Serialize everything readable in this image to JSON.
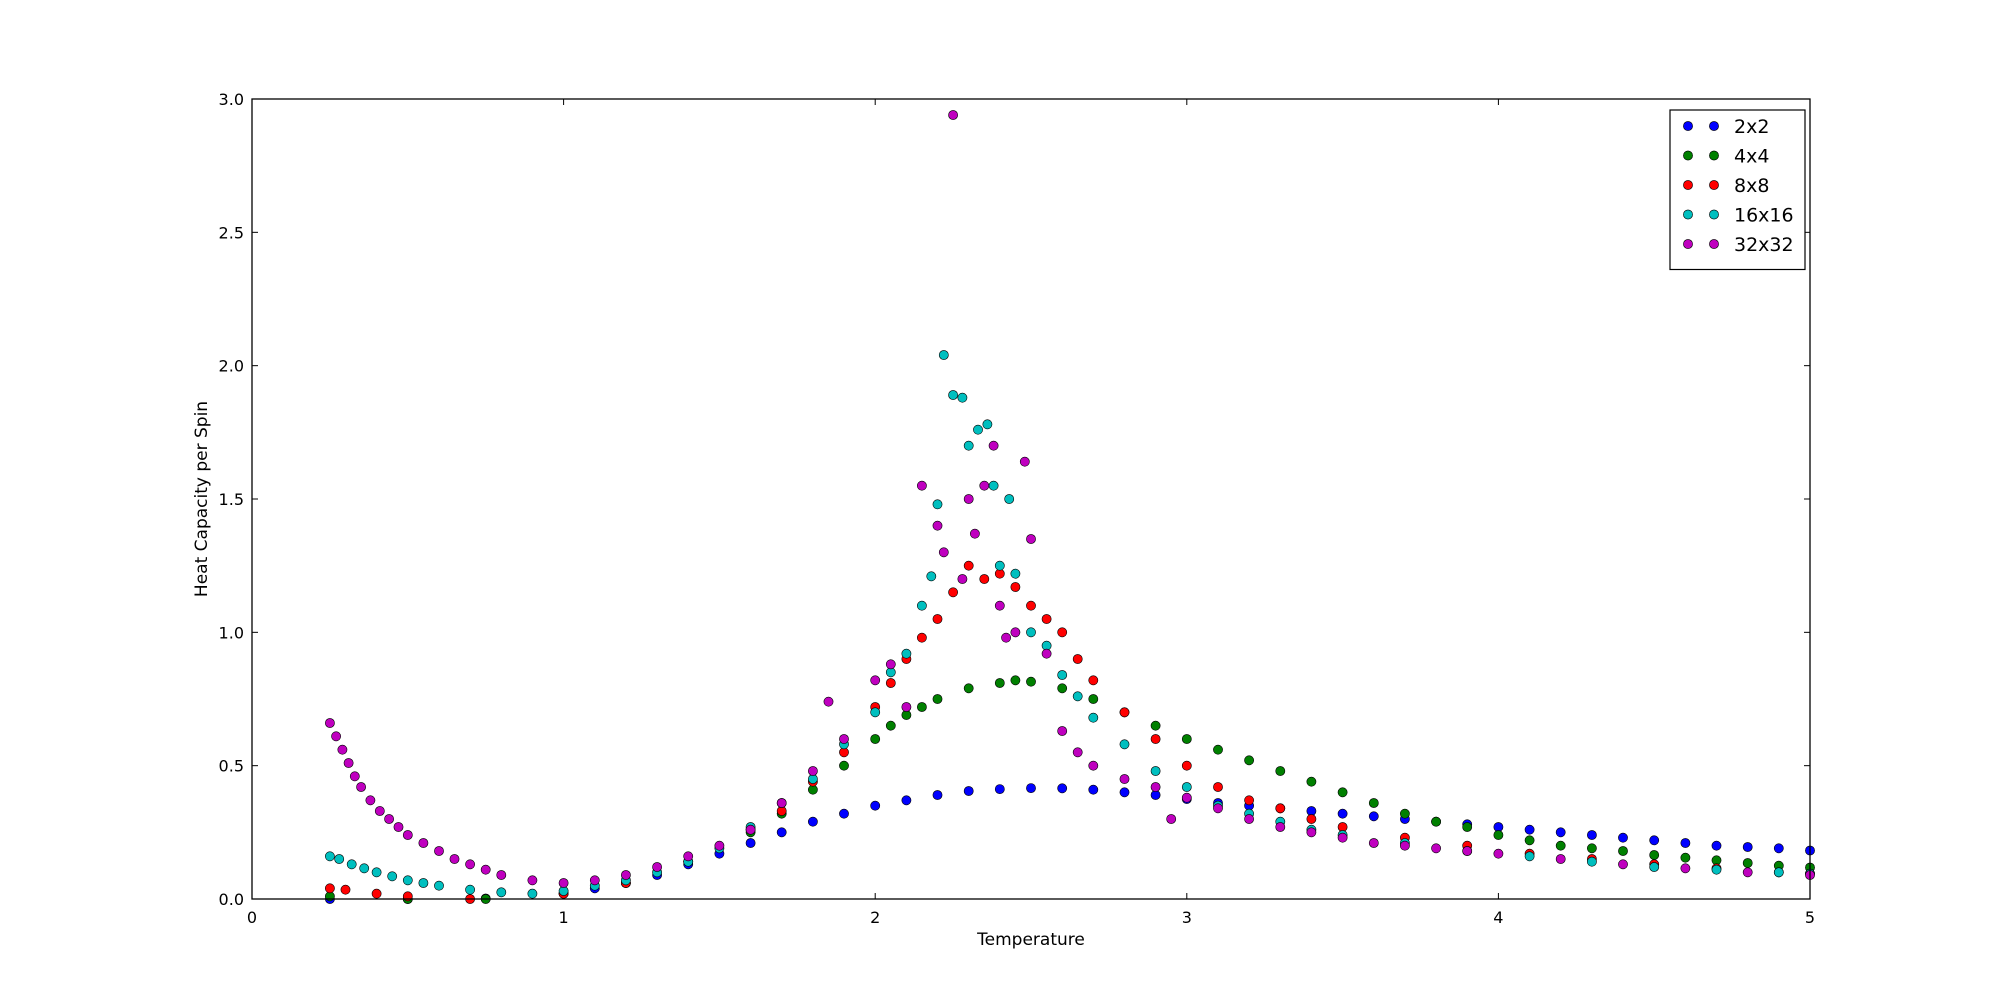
{
  "chart_data": {
    "type": "scatter",
    "title": "",
    "xlabel": "Temperature",
    "ylabel": "Heat Capacity per Spin",
    "xlim": [
      0,
      5
    ],
    "ylim": [
      0,
      3.0
    ],
    "x_ticks": [
      "0",
      "1",
      "2",
      "3",
      "4",
      "5"
    ],
    "y_ticks": [
      "0.0",
      "0.5",
      "1.0",
      "1.5",
      "2.0",
      "2.5",
      "3.0"
    ],
    "grid": false,
    "legend_position": "top-right",
    "series": [
      {
        "name": "2x2",
        "color": "#0000ff",
        "points": [
          [
            0.25,
            0.0
          ],
          [
            0.5,
            0.0
          ],
          [
            0.75,
            0.002
          ],
          [
            1.0,
            0.02
          ],
          [
            1.1,
            0.04
          ],
          [
            1.2,
            0.06
          ],
          [
            1.3,
            0.09
          ],
          [
            1.4,
            0.13
          ],
          [
            1.5,
            0.17
          ],
          [
            1.6,
            0.21
          ],
          [
            1.7,
            0.25
          ],
          [
            1.8,
            0.29
          ],
          [
            1.9,
            0.32
          ],
          [
            2.0,
            0.35
          ],
          [
            2.1,
            0.37
          ],
          [
            2.2,
            0.39
          ],
          [
            2.3,
            0.405
          ],
          [
            2.4,
            0.412
          ],
          [
            2.5,
            0.416
          ],
          [
            2.6,
            0.415
          ],
          [
            2.7,
            0.41
          ],
          [
            2.8,
            0.4
          ],
          [
            2.9,
            0.39
          ],
          [
            3.0,
            0.375
          ],
          [
            3.1,
            0.36
          ],
          [
            3.2,
            0.35
          ],
          [
            3.3,
            0.34
          ],
          [
            3.4,
            0.33
          ],
          [
            3.5,
            0.32
          ],
          [
            3.6,
            0.31
          ],
          [
            3.7,
            0.3
          ],
          [
            3.8,
            0.29
          ],
          [
            3.9,
            0.28
          ],
          [
            4.0,
            0.27
          ],
          [
            4.1,
            0.26
          ],
          [
            4.2,
            0.25
          ],
          [
            4.3,
            0.24
          ],
          [
            4.4,
            0.23
          ],
          [
            4.5,
            0.22
          ],
          [
            4.6,
            0.21
          ],
          [
            4.7,
            0.2
          ],
          [
            4.8,
            0.195
          ],
          [
            4.9,
            0.19
          ],
          [
            5.0,
            0.182
          ]
        ]
      },
      {
        "name": "4x4",
        "color": "#008000",
        "points": [
          [
            0.25,
            0.01
          ],
          [
            0.5,
            0.0
          ],
          [
            0.75,
            0.0
          ],
          [
            1.0,
            0.02
          ],
          [
            1.2,
            0.06
          ],
          [
            1.4,
            0.14
          ],
          [
            1.6,
            0.25
          ],
          [
            1.7,
            0.32
          ],
          [
            1.8,
            0.41
          ],
          [
            1.9,
            0.5
          ],
          [
            2.0,
            0.6
          ],
          [
            2.05,
            0.65
          ],
          [
            2.1,
            0.69
          ],
          [
            2.15,
            0.72
          ],
          [
            2.2,
            0.75
          ],
          [
            2.3,
            0.79
          ],
          [
            2.4,
            0.81
          ],
          [
            2.45,
            0.82
          ],
          [
            2.5,
            0.815
          ],
          [
            2.6,
            0.79
          ],
          [
            2.7,
            0.75
          ],
          [
            2.8,
            0.7
          ],
          [
            2.9,
            0.65
          ],
          [
            3.0,
            0.6
          ],
          [
            3.1,
            0.56
          ],
          [
            3.2,
            0.52
          ],
          [
            3.3,
            0.48
          ],
          [
            3.4,
            0.44
          ],
          [
            3.5,
            0.4
          ],
          [
            3.6,
            0.36
          ],
          [
            3.7,
            0.32
          ],
          [
            3.8,
            0.29
          ],
          [
            3.9,
            0.27
          ],
          [
            4.0,
            0.24
          ],
          [
            4.1,
            0.22
          ],
          [
            4.2,
            0.2
          ],
          [
            4.3,
            0.19
          ],
          [
            4.4,
            0.18
          ],
          [
            4.5,
            0.165
          ],
          [
            4.6,
            0.155
          ],
          [
            4.7,
            0.145
          ],
          [
            4.8,
            0.135
          ],
          [
            4.9,
            0.125
          ],
          [
            5.0,
            0.118
          ]
        ]
      },
      {
        "name": "8x8",
        "color": "#ff0000",
        "points": [
          [
            0.25,
            0.04
          ],
          [
            0.3,
            0.035
          ],
          [
            0.4,
            0.02
          ],
          [
            0.5,
            0.01
          ],
          [
            0.7,
            0.0
          ],
          [
            1.0,
            0.02
          ],
          [
            1.2,
            0.06
          ],
          [
            1.4,
            0.14
          ],
          [
            1.6,
            0.26
          ],
          [
            1.7,
            0.33
          ],
          [
            1.8,
            0.44
          ],
          [
            1.9,
            0.55
          ],
          [
            2.0,
            0.72
          ],
          [
            2.05,
            0.81
          ],
          [
            2.1,
            0.9
          ],
          [
            2.15,
            0.98
          ],
          [
            2.2,
            1.05
          ],
          [
            2.25,
            1.15
          ],
          [
            2.3,
            1.25
          ],
          [
            2.35,
            1.2
          ],
          [
            2.4,
            1.22
          ],
          [
            2.45,
            1.17
          ],
          [
            2.5,
            1.1
          ],
          [
            2.55,
            1.05
          ],
          [
            2.6,
            1.0
          ],
          [
            2.65,
            0.9
          ],
          [
            2.7,
            0.82
          ],
          [
            2.8,
            0.7
          ],
          [
            2.9,
            0.6
          ],
          [
            3.0,
            0.5
          ],
          [
            3.1,
            0.42
          ],
          [
            3.2,
            0.37
          ],
          [
            3.3,
            0.34
          ],
          [
            3.4,
            0.3
          ],
          [
            3.5,
            0.27
          ],
          [
            3.7,
            0.23
          ],
          [
            3.9,
            0.2
          ],
          [
            4.1,
            0.17
          ],
          [
            4.3,
            0.15
          ],
          [
            4.5,
            0.13
          ],
          [
            4.7,
            0.115
          ],
          [
            4.9,
            0.1
          ],
          [
            5.0,
            0.095
          ]
        ]
      },
      {
        "name": "16x16",
        "color": "#00bfbf",
        "points": [
          [
            0.25,
            0.16
          ],
          [
            0.28,
            0.15
          ],
          [
            0.32,
            0.13
          ],
          [
            0.36,
            0.115
          ],
          [
            0.4,
            0.1
          ],
          [
            0.45,
            0.085
          ],
          [
            0.5,
            0.07
          ],
          [
            0.55,
            0.06
          ],
          [
            0.6,
            0.05
          ],
          [
            0.7,
            0.035
          ],
          [
            0.8,
            0.025
          ],
          [
            0.9,
            0.02
          ],
          [
            1.0,
            0.03
          ],
          [
            1.1,
            0.05
          ],
          [
            1.2,
            0.07
          ],
          [
            1.3,
            0.1
          ],
          [
            1.4,
            0.14
          ],
          [
            1.5,
            0.19
          ],
          [
            1.6,
            0.27
          ],
          [
            1.7,
            0.36
          ],
          [
            1.8,
            0.45
          ],
          [
            1.9,
            0.58
          ],
          [
            2.0,
            0.7
          ],
          [
            2.05,
            0.85
          ],
          [
            2.1,
            0.92
          ],
          [
            2.15,
            1.1
          ],
          [
            2.18,
            1.21
          ],
          [
            2.2,
            1.48
          ],
          [
            2.22,
            2.04
          ],
          [
            2.25,
            1.89
          ],
          [
            2.28,
            1.88
          ],
          [
            2.3,
            1.7
          ],
          [
            2.33,
            1.76
          ],
          [
            2.36,
            1.78
          ],
          [
            2.38,
            1.55
          ],
          [
            2.4,
            1.25
          ],
          [
            2.43,
            1.5
          ],
          [
            2.45,
            1.22
          ],
          [
            2.5,
            1.0
          ],
          [
            2.55,
            0.95
          ],
          [
            2.6,
            0.84
          ],
          [
            2.65,
            0.76
          ],
          [
            2.7,
            0.68
          ],
          [
            2.8,
            0.58
          ],
          [
            2.9,
            0.48
          ],
          [
            3.0,
            0.42
          ],
          [
            3.1,
            0.35
          ],
          [
            3.2,
            0.32
          ],
          [
            3.3,
            0.29
          ],
          [
            3.4,
            0.26
          ],
          [
            3.5,
            0.24
          ],
          [
            3.7,
            0.21
          ],
          [
            3.9,
            0.18
          ],
          [
            4.1,
            0.16
          ],
          [
            4.3,
            0.14
          ],
          [
            4.5,
            0.12
          ],
          [
            4.7,
            0.11
          ],
          [
            4.9,
            0.1
          ],
          [
            5.0,
            0.095
          ]
        ]
      },
      {
        "name": "32x32",
        "color": "#bf00bf",
        "points": [
          [
            0.25,
            0.66
          ],
          [
            0.27,
            0.61
          ],
          [
            0.29,
            0.56
          ],
          [
            0.31,
            0.51
          ],
          [
            0.33,
            0.46
          ],
          [
            0.35,
            0.42
          ],
          [
            0.38,
            0.37
          ],
          [
            0.41,
            0.33
          ],
          [
            0.44,
            0.3
          ],
          [
            0.47,
            0.27
          ],
          [
            0.5,
            0.24
          ],
          [
            0.55,
            0.21
          ],
          [
            0.6,
            0.18
          ],
          [
            0.65,
            0.15
          ],
          [
            0.7,
            0.13
          ],
          [
            0.75,
            0.11
          ],
          [
            0.8,
            0.09
          ],
          [
            0.9,
            0.07
          ],
          [
            1.0,
            0.06
          ],
          [
            1.1,
            0.07
          ],
          [
            1.2,
            0.09
          ],
          [
            1.3,
            0.12
          ],
          [
            1.4,
            0.16
          ],
          [
            1.5,
            0.2
          ],
          [
            1.6,
            0.26
          ],
          [
            1.7,
            0.36
          ],
          [
            1.8,
            0.48
          ],
          [
            1.85,
            0.74
          ],
          [
            1.9,
            0.6
          ],
          [
            2.0,
            0.82
          ],
          [
            2.05,
            0.88
          ],
          [
            2.1,
            0.72
          ],
          [
            2.15,
            1.55
          ],
          [
            2.2,
            1.4
          ],
          [
            2.22,
            1.3
          ],
          [
            2.25,
            2.94
          ],
          [
            2.28,
            1.2
          ],
          [
            2.3,
            1.5
          ],
          [
            2.32,
            1.37
          ],
          [
            2.35,
            1.55
          ],
          [
            2.38,
            1.7
          ],
          [
            2.4,
            1.1
          ],
          [
            2.42,
            0.98
          ],
          [
            2.45,
            1.0
          ],
          [
            2.48,
            1.64
          ],
          [
            2.5,
            1.35
          ],
          [
            2.55,
            0.92
          ],
          [
            2.6,
            0.63
          ],
          [
            2.65,
            0.55
          ],
          [
            2.7,
            0.5
          ],
          [
            2.8,
            0.45
          ],
          [
            2.9,
            0.42
          ],
          [
            2.95,
            0.3
          ],
          [
            3.0,
            0.38
          ],
          [
            3.1,
            0.34
          ],
          [
            3.2,
            0.3
          ],
          [
            3.3,
            0.27
          ],
          [
            3.4,
            0.25
          ],
          [
            3.5,
            0.23
          ],
          [
            3.6,
            0.21
          ],
          [
            3.7,
            0.2
          ],
          [
            3.8,
            0.19
          ],
          [
            3.9,
            0.18
          ],
          [
            4.0,
            0.17
          ],
          [
            4.2,
            0.15
          ],
          [
            4.4,
            0.13
          ],
          [
            4.6,
            0.115
          ],
          [
            4.8,
            0.1
          ],
          [
            5.0,
            0.09
          ]
        ]
      }
    ]
  }
}
